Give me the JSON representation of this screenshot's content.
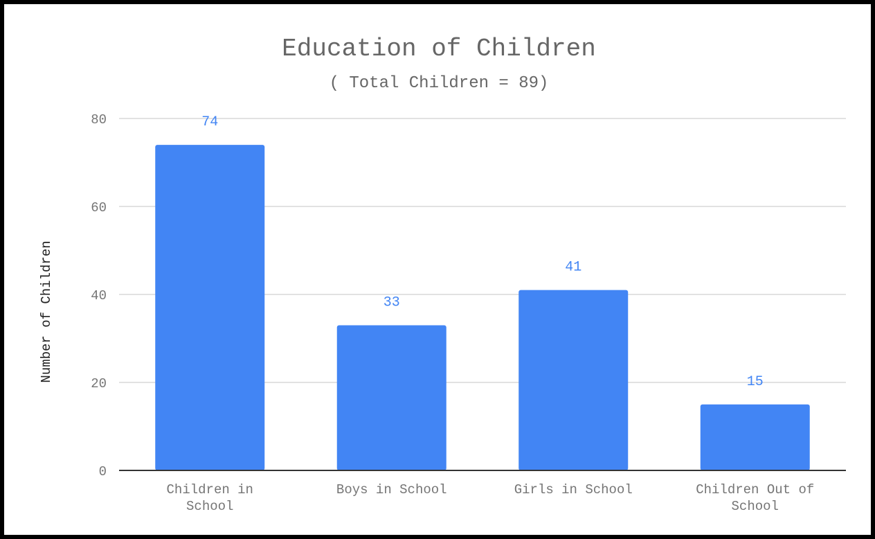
{
  "chart_data": {
    "type": "bar",
    "title": "Education of Children",
    "subtitle": "( Total Children = 89)",
    "xlabel": "",
    "ylabel": "Number of Children",
    "categories": [
      [
        "Children in",
        "School"
      ],
      [
        "Boys in School"
      ],
      [
        "Girls in School"
      ],
      [
        "Children Out of",
        "School"
      ]
    ],
    "values": [
      74,
      33,
      41,
      15
    ],
    "data_labels": [
      "74",
      "33",
      "41",
      "15"
    ],
    "ylim": [
      0,
      80
    ],
    "yticks": [
      0,
      20,
      40,
      60,
      80
    ],
    "grid": true,
    "legend": "none",
    "bar_color": "#4285f4",
    "label_color": "#4285f4",
    "grid_color": "#d9d9d9",
    "text_color": "#757575"
  }
}
